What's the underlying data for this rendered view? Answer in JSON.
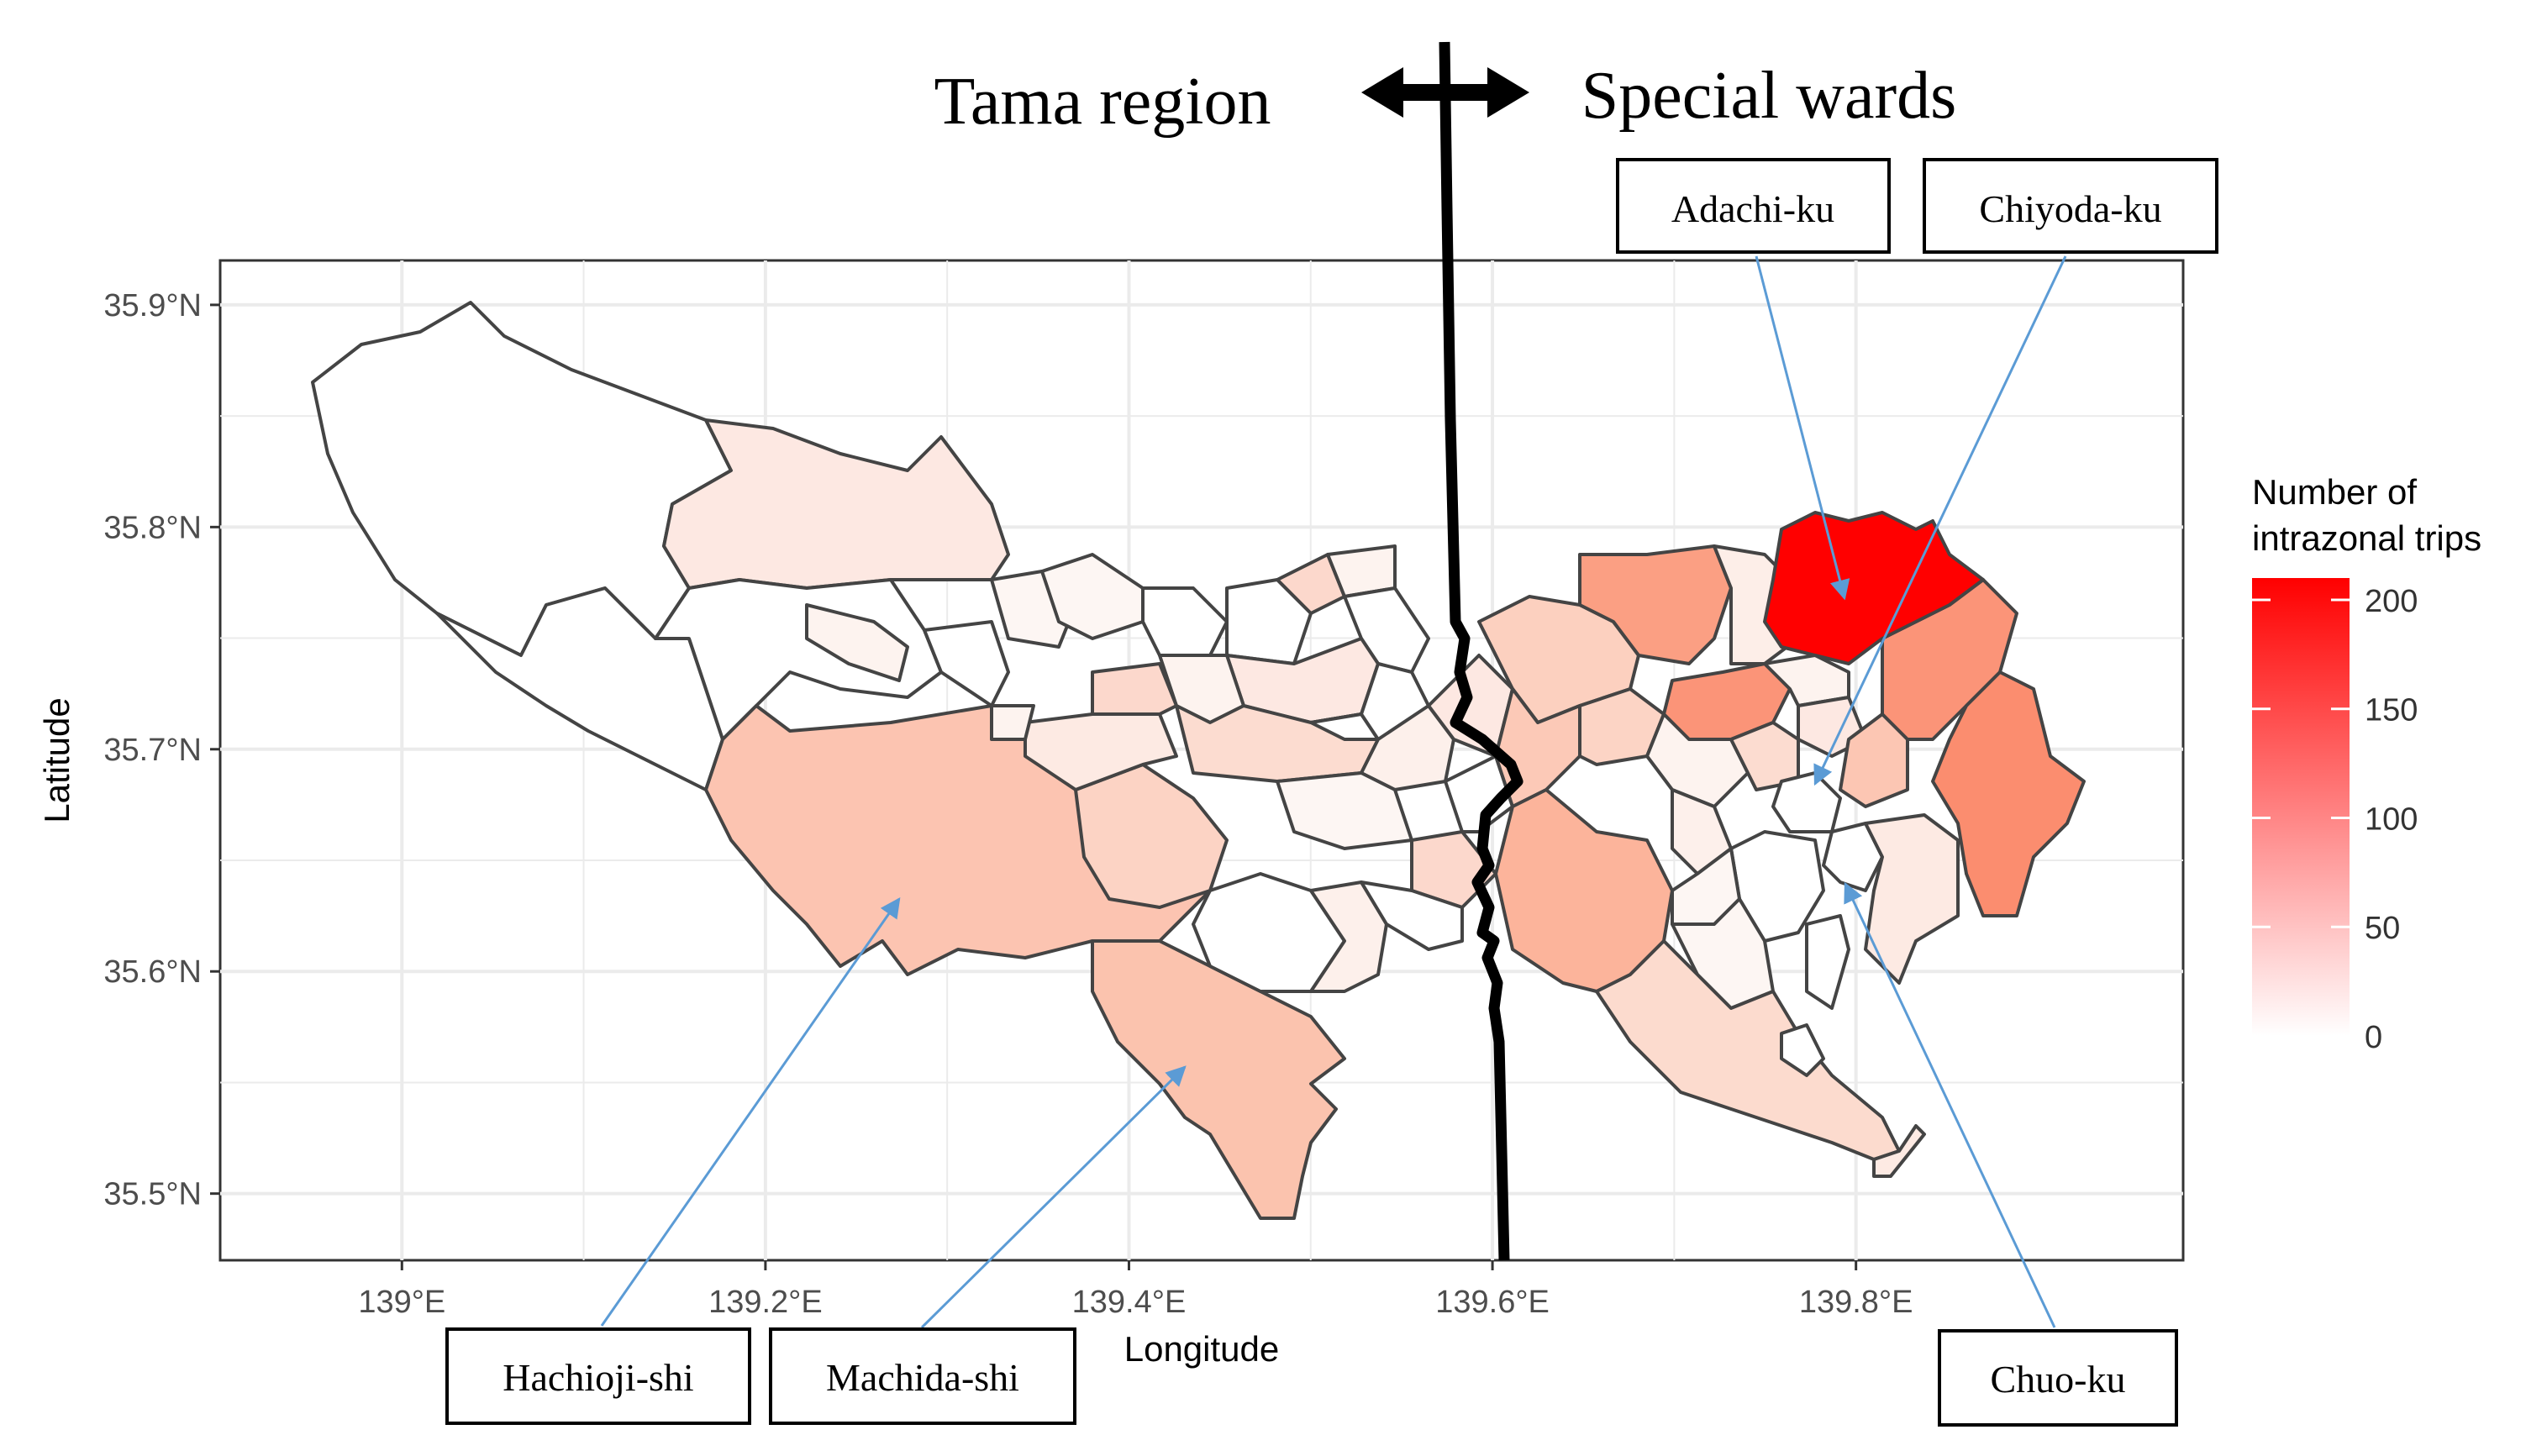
{
  "chart_data": {
    "type": "choropleth",
    "xlabel": "Longitude",
    "ylabel": "Latitude",
    "xlim": [
      138.9,
      139.98
    ],
    "ylim": [
      35.47,
      35.92
    ],
    "x_ticks": [
      {
        "value": 139.0,
        "label": "139°E"
      },
      {
        "value": 139.2,
        "label": "139.2°E"
      },
      {
        "value": 139.4,
        "label": "139.4°E"
      },
      {
        "value": 139.6,
        "label": "139.6°E"
      },
      {
        "value": 139.8,
        "label": "139.8°E"
      }
    ],
    "y_ticks": [
      {
        "value": 35.5,
        "label": "35.5°N"
      },
      {
        "value": 35.6,
        "label": "35.6°N"
      },
      {
        "value": 35.7,
        "label": "35.7°N"
      },
      {
        "value": 35.8,
        "label": "35.8°N"
      },
      {
        "value": 35.9,
        "label": "35.9°N"
      }
    ],
    "grid": true,
    "legend": {
      "title_line1": "Number of",
      "title_line2": "intrazonal trips",
      "position": "right",
      "min": 0,
      "max": 210,
      "color_low": "#ffffff",
      "color_high": "#ff0000",
      "ticks": [
        {
          "value": 0,
          "label": "0"
        },
        {
          "value": 50,
          "label": "50"
        },
        {
          "value": 100,
          "label": "100"
        },
        {
          "value": 150,
          "label": "150"
        },
        {
          "value": 200,
          "label": "200"
        }
      ]
    },
    "regions": [
      {
        "name": "Adachi-ku",
        "value": 205,
        "labeled": true
      },
      {
        "name": "Chiyoda-ku",
        "value": 5,
        "labeled": true
      },
      {
        "name": "Chuo-ku",
        "value": 8,
        "labeled": true
      },
      {
        "name": "Hachioji-shi",
        "value": 45,
        "labeled": true
      },
      {
        "name": "Machida-shi",
        "value": 42,
        "labeled": true
      }
    ],
    "boundary_line": {
      "left_label": "Tama region",
      "right_label": "Special wards"
    }
  },
  "annotations": {
    "tama_label": "Tama region",
    "wards_label": "Special wards",
    "callouts": [
      {
        "label": "Adachi-ku"
      },
      {
        "label": "Chiyoda-ku"
      },
      {
        "label": "Hachioji-shi"
      },
      {
        "label": "Machida-shi"
      },
      {
        "label": "Chuo-ku"
      }
    ]
  },
  "colors": {
    "panel_border": "#333333",
    "grid": "#ebebeb",
    "boundary": "#444444",
    "arrow": "#5b9bd5",
    "divider": "#000000"
  }
}
